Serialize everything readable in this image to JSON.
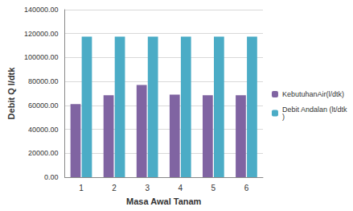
{
  "chart_data": {
    "type": "bar",
    "x_label": "Masa Awal Tanam",
    "y_label": "Debit Q l/dtk",
    "categories": [
      "1",
      "2",
      "3",
      "4",
      "5",
      "6"
    ],
    "series": [
      {
        "name": "KebutuhanAir(l/dtk)",
        "color": "#8064a2",
        "values": [
          61000,
          68500,
          77000,
          69000,
          68500,
          68500
        ]
      },
      {
        "name": "Debit Andalan (lt/dtk)",
        "color": "#4bacc6",
        "values": [
          117500,
          117500,
          117500,
          117500,
          117500,
          117500
        ]
      }
    ],
    "ylim": [
      0,
      140000
    ],
    "yticks": [
      {
        "value": 0,
        "label": "0.00"
      },
      {
        "value": 20000,
        "label": "20000.00"
      },
      {
        "value": 40000,
        "label": "40000.00"
      },
      {
        "value": 60000,
        "label": "60000.00"
      },
      {
        "value": 80000,
        "label": "80000.00"
      },
      {
        "value": 100000,
        "label": "100000.00"
      },
      {
        "value": 120000,
        "label": "120000.00"
      },
      {
        "value": 140000,
        "label": "140000.00"
      }
    ],
    "grid": true,
    "legend": "right"
  }
}
